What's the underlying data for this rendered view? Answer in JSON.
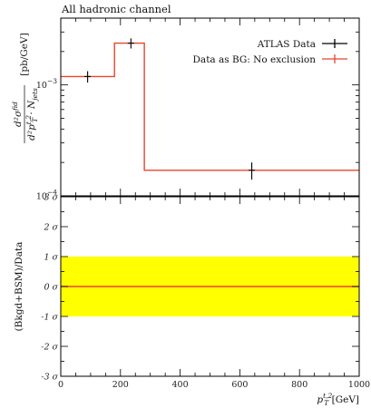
{
  "title": "All hadronic channel",
  "colors": {
    "data": "#000000",
    "mc": "#e8452c",
    "band": "#ffff00"
  },
  "chart_data": [
    {
      "type": "line",
      "log_y": true,
      "ylim": [
        0.0001,
        0.004
      ],
      "xlim": [
        0,
        1000
      ],
      "ylabel_parts": {
        "num": "d²σ",
        "num_sup": "fid",
        "den": "d²p",
        "den_sub": "T",
        "den_sup": "t,2",
        "den_tail": " · N",
        "den_tail_sub": "jets",
        "unit": "[pb/GeV]"
      },
      "yticks": [
        {
          "value": 0.001,
          "base": "10",
          "exp": "−3"
        },
        {
          "value": 0.0001,
          "base": "10",
          "exp": "−4"
        }
      ],
      "legend": {
        "placement": "top-right",
        "entries": [
          {
            "label": "ATLAS Data",
            "series": "data"
          },
          {
            "label": "Data as BG: No exclusion",
            "series": "mc"
          }
        ]
      },
      "series": [
        {
          "key": "data",
          "kind": "points",
          "x": [
            90,
            235,
            640
          ],
          "y": [
            0.00119,
            0.00238,
            0.00017
          ],
          "yerr_lo": [
            0.00014,
            0.00025,
            3e-05
          ],
          "yerr_hi": [
            0.00014,
            0.00025,
            3e-05
          ],
          "xerr": [
            0,
            0,
            0
          ]
        },
        {
          "key": "mc",
          "kind": "step",
          "edges": [
            0,
            180,
            280,
            1000
          ],
          "values": [
            0.00119,
            0.00238,
            0.00017
          ]
        }
      ]
    },
    {
      "type": "area",
      "ylabel": "(Bkgd+BSM)/Data",
      "xlabel_parts": {
        "base": "p",
        "sub": "T",
        "sup": "t,2",
        "unit": " [GeV]"
      },
      "xlim": [
        0,
        1000
      ],
      "ylim": [
        -3,
        3
      ],
      "xticks": [
        0,
        200,
        400,
        600,
        800,
        1000
      ],
      "yticks": [
        {
          "value": 3,
          "label": "3 σ"
        },
        {
          "value": 2,
          "label": "2 σ"
        },
        {
          "value": 1,
          "label": "1 σ"
        },
        {
          "value": 0,
          "label": "0 σ"
        },
        {
          "value": -1,
          "label": "-1 σ"
        },
        {
          "value": -2,
          "label": "-2 σ"
        },
        {
          "value": -3,
          "label": "-3 σ"
        }
      ],
      "band": [
        -1,
        1
      ],
      "line": 0
    }
  ]
}
